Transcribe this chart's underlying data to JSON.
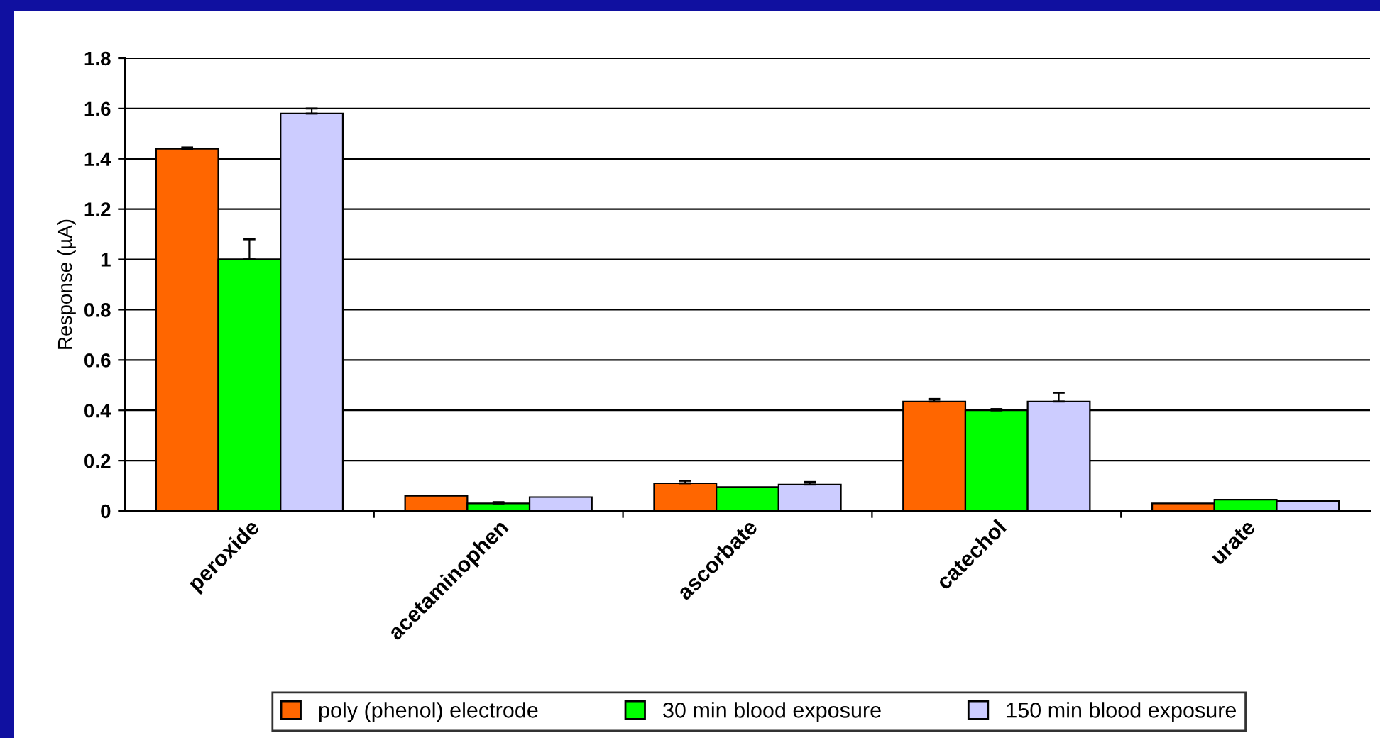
{
  "chart_data": {
    "type": "bar",
    "ylabel": "Response (µA)",
    "categories": [
      "peroxide",
      "acetaminophen",
      "ascorbate",
      "catechol",
      "urate"
    ],
    "series": [
      {
        "name": "poly (phenol) electrode",
        "color": "#ff6600",
        "values": [
          1.44,
          0.06,
          0.11,
          0.435,
          0.03
        ],
        "errors": [
          0.005,
          null,
          0.01,
          0.01,
          null
        ]
      },
      {
        "name": "30 min blood exposure",
        "color": "#00ff00",
        "values": [
          1.0,
          0.03,
          0.095,
          0.4,
          0.045
        ],
        "errors": [
          0.08,
          0.005,
          null,
          0.005,
          null
        ]
      },
      {
        "name": "150 min blood exposure",
        "color": "#ccccff",
        "values": [
          1.58,
          0.055,
          0.105,
          0.435,
          0.04
        ],
        "errors": [
          0.02,
          null,
          0.01,
          0.035,
          null
        ]
      }
    ],
    "ylim": [
      0,
      1.8
    ],
    "yticks": [
      0,
      0.2,
      0.4,
      0.6,
      0.8,
      1,
      1.2,
      1.4,
      1.6,
      1.8
    ],
    "grid": "y",
    "legend": "bottom"
  }
}
